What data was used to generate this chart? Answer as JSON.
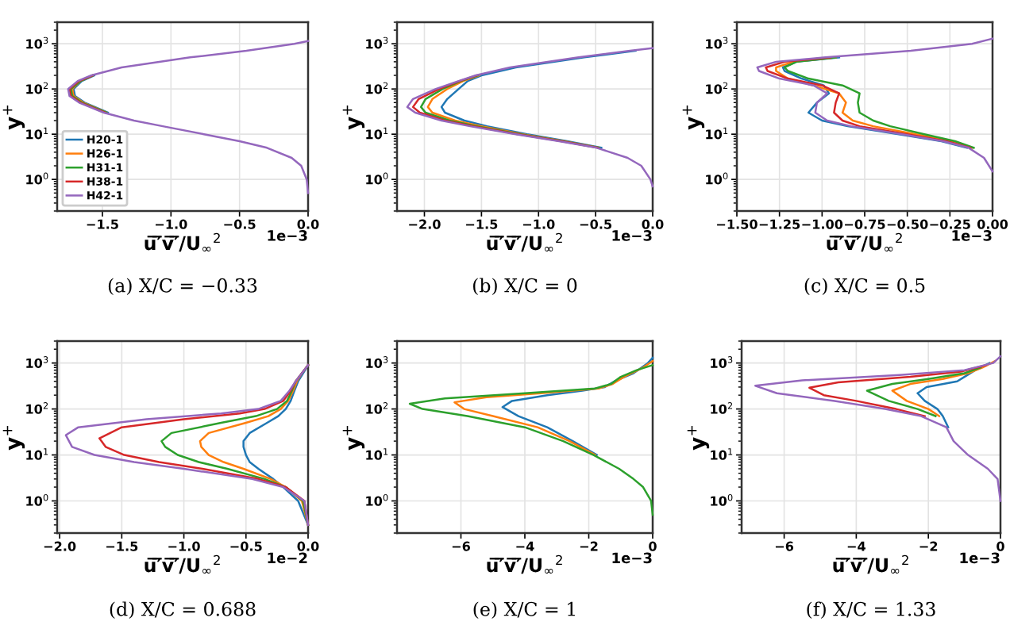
{
  "chart_data": [
    {
      "type": "line",
      "title": "(a) X/C = −0.33",
      "xlabel": "u̅′̅v̅′̅/U$_{∞}$$^{2}$",
      "ylabel": "y$^{+}$",
      "annotations": [
        "1e−3"
      ],
      "log": "y",
      "grid": true,
      "legend": "bottom left",
      "xlim": [
        -1.83,
        0
      ],
      "xticks": [
        {
          "value": -1.5,
          "label": "−1.5"
        },
        {
          "value": -1.0,
          "label": "−1.0"
        },
        {
          "value": -0.5,
          "label": "−0.5"
        },
        {
          "value": 0,
          "label": "0.0"
        }
      ],
      "ylim": [
        0.2,
        3000
      ],
      "yticks": [
        {
          "value": 1,
          "label": "10$^{0}$"
        },
        {
          "value": 10,
          "label": "10$^{1}$"
        },
        {
          "value": 100,
          "label": "10$^{2}$"
        },
        {
          "value": 1000,
          "label": "10$^{3}$"
        }
      ],
      "series": [
        {
          "name": "H20-1",
          "color": "#1f77b4",
          "x": [
            -1.46,
            -1.63,
            -1.7,
            -1.71,
            -1.65,
            -1.56
          ],
          "values": [
            30,
            50,
            70,
            100,
            150,
            200
          ]
        },
        {
          "name": "H26-1",
          "color": "#ff7f0e",
          "x": [
            -1.47,
            -1.64,
            -1.71,
            -1.72,
            -1.66,
            -1.57
          ],
          "values": [
            30,
            50,
            70,
            100,
            150,
            200
          ]
        },
        {
          "name": "H31-1",
          "color": "#2ca02c",
          "x": [
            -1.47,
            -1.65,
            -1.72,
            -1.73,
            -1.66,
            -1.57
          ],
          "values": [
            30,
            50,
            70,
            100,
            150,
            200
          ]
        },
        {
          "name": "H38-1",
          "color": "#d62728",
          "x": [
            -1.48,
            -1.66,
            -1.73,
            -1.74,
            -1.67,
            -1.57
          ],
          "values": [
            30,
            50,
            70,
            100,
            150,
            200
          ]
        },
        {
          "name": "H42-1",
          "color": "#9467bd",
          "x": [
            0,
            -0.01,
            -0.05,
            -0.12,
            -0.3,
            -0.5,
            -0.76,
            -1.06,
            -1.27,
            -1.49,
            -1.67,
            -1.74,
            -1.75,
            -1.68,
            -1.58,
            -1.36,
            -0.86,
            -0.45,
            -0.1,
            0
          ],
          "values": [
            0.5,
            1,
            2,
            3,
            5,
            7,
            10,
            15,
            20,
            30,
            50,
            70,
            100,
            150,
            200,
            300,
            500,
            700,
            1000,
            1150
          ]
        }
      ]
    },
    {
      "type": "line",
      "title": "(b) X/C = 0",
      "xlabel": "u̅′̅v̅′̅/U$_{∞}$$^{2}$",
      "ylabel": "y$^{+}$",
      "annotations": [
        "1e−3"
      ],
      "log": "y",
      "grid": true,
      "xlim": [
        -2.24,
        0
      ],
      "xticks": [
        {
          "value": -2.0,
          "label": "−2.0"
        },
        {
          "value": -1.5,
          "label": "−1.5"
        },
        {
          "value": -1.0,
          "label": "−1.0"
        },
        {
          "value": -0.5,
          "label": "−0.5"
        },
        {
          "value": 0,
          "label": "0.0"
        }
      ],
      "ylim": [
        0.2,
        3000
      ],
      "yticks": [
        {
          "value": 1,
          "label": "10$^{0}$"
        },
        {
          "value": 10,
          "label": "10$^{1}$"
        },
        {
          "value": 100,
          "label": "10$^{2}$"
        },
        {
          "value": 1000,
          "label": "10$^{3}$"
        }
      ],
      "series": [
        {
          "color": "#1f77b4",
          "x": [
            -0.45,
            -0.75,
            -1.1,
            -1.45,
            -1.65,
            -1.82,
            -1.85,
            -1.8,
            -1.7,
            -1.62,
            -1.5,
            -1.2,
            -0.6,
            -0.15
          ],
          "values": [
            5,
            7,
            10,
            15,
            20,
            30,
            40,
            60,
            100,
            150,
            200,
            300,
            500,
            700
          ]
        },
        {
          "color": "#ff7f0e",
          "x": [
            -0.47,
            -0.78,
            -1.14,
            -1.5,
            -1.73,
            -1.93,
            -1.97,
            -1.93,
            -1.8,
            -1.66,
            -1.52
          ],
          "values": [
            5,
            7,
            10,
            15,
            20,
            30,
            40,
            60,
            100,
            150,
            200
          ]
        },
        {
          "color": "#2ca02c",
          "x": [
            -0.47,
            -0.79,
            -1.16,
            -1.54,
            -1.78,
            -1.99,
            -2.03,
            -1.99,
            -1.84,
            -1.68,
            -1.53
          ],
          "values": [
            5,
            7,
            10,
            15,
            20,
            30,
            40,
            60,
            100,
            150,
            200
          ]
        },
        {
          "color": "#d62728",
          "x": [
            -0.48,
            -0.8,
            -1.18,
            -1.57,
            -1.82,
            -2.04,
            -2.1,
            -2.05,
            -1.87,
            -1.69,
            -1.54
          ],
          "values": [
            5,
            7,
            10,
            15,
            20,
            30,
            40,
            60,
            100,
            150,
            200
          ]
        },
        {
          "color": "#9467bd",
          "x": [
            0,
            -0.02,
            -0.1,
            -0.22,
            -0.49,
            -0.82,
            -1.2,
            -1.6,
            -1.85,
            -2.08,
            -2.15,
            -2.1,
            -1.9,
            -1.7,
            -1.55,
            -1.25,
            -0.65,
            -0.2,
            0
          ],
          "values": [
            0.7,
            1,
            2,
            3,
            5,
            7,
            10,
            15,
            20,
            30,
            40,
            60,
            100,
            150,
            200,
            300,
            500,
            700,
            800
          ]
        }
      ]
    },
    {
      "type": "line",
      "title": "(c) X/C = 0.5",
      "xlabel": "u̅′̅v̅′̅/U$_{∞}$$^{2}$",
      "ylabel": "y$^{+}$",
      "annotations": [
        "1e−3"
      ],
      "log": "y",
      "grid": true,
      "xlim": [
        -1.5,
        0
      ],
      "xticks": [
        {
          "value": -1.5,
          "label": "−1.50"
        },
        {
          "value": -1.25,
          "label": "−1.25"
        },
        {
          "value": -1.0,
          "label": "−1.00"
        },
        {
          "value": -0.75,
          "label": "−0.75"
        },
        {
          "value": -0.5,
          "label": "−0.50"
        },
        {
          "value": -0.25,
          "label": "−0.25"
        },
        {
          "value": 0,
          "label": "0.00"
        }
      ],
      "ylim": [
        0.2,
        3000
      ],
      "yticks": [
        {
          "value": 1,
          "label": "10$^{0}$"
        },
        {
          "value": 10,
          "label": "10$^{1}$"
        },
        {
          "value": 100,
          "label": "10$^{2}$"
        },
        {
          "value": 1000,
          "label": "10$^{3}$"
        }
      ],
      "series": [
        {
          "color": "#1f77b4",
          "x": [
            -0.15,
            -0.3,
            -0.55,
            -0.85,
            -1.0,
            -1.08,
            -1.03,
            -0.96,
            -0.99,
            -1.12,
            -1.22,
            -1.23,
            -1.15,
            -0.9
          ],
          "values": [
            5,
            7,
            10,
            15,
            20,
            30,
            50,
            80,
            120,
            170,
            250,
            300,
            400,
            500
          ]
        },
        {
          "color": "#ff7f0e",
          "x": [
            -0.12,
            -0.25,
            -0.45,
            -0.7,
            -0.82,
            -0.88,
            -0.86,
            -0.9,
            -1.05,
            -1.2,
            -1.27,
            -1.27,
            -1.17,
            -0.92
          ],
          "values": [
            5,
            7,
            10,
            15,
            20,
            30,
            50,
            80,
            120,
            170,
            250,
            300,
            400,
            500
          ]
        },
        {
          "color": "#2ca02c",
          "x": [
            -0.11,
            -0.22,
            -0.4,
            -0.6,
            -0.7,
            -0.78,
            -0.79,
            -0.78,
            -0.88,
            -1.08,
            -1.2,
            -1.22,
            -1.15,
            -0.92
          ],
          "values": [
            5,
            7,
            10,
            15,
            20,
            30,
            50,
            80,
            120,
            170,
            250,
            300,
            400,
            500
          ]
        },
        {
          "color": "#d62728",
          "x": [
            -0.13,
            -0.27,
            -0.5,
            -0.78,
            -0.88,
            -0.93,
            -0.92,
            -0.9,
            -1.0,
            -1.2,
            -1.32,
            -1.33,
            -1.22,
            -0.95
          ],
          "values": [
            5,
            7,
            10,
            15,
            20,
            30,
            50,
            80,
            120,
            170,
            250,
            300,
            400,
            500
          ]
        },
        {
          "color": "#9467bd",
          "x": [
            0,
            -0.05,
            -0.14,
            -0.29,
            -0.53,
            -0.83,
            -0.97,
            -1.04,
            -1.03,
            -0.97,
            -1.05,
            -1.25,
            -1.37,
            -1.38,
            -1.27,
            -0.98,
            -0.48,
            -0.12,
            0
          ],
          "values": [
            1.5,
            3,
            5,
            7,
            10,
            15,
            20,
            30,
            50,
            80,
            120,
            170,
            250,
            300,
            400,
            500,
            700,
            1000,
            1300
          ]
        }
      ]
    },
    {
      "type": "line",
      "title": "(d) X/C = 0.688",
      "xlabel": "u̅′̅v̅′̅/U$_{∞}$$^{2}$",
      "ylabel": "y$^{+}$",
      "annotations": [
        "1e−2"
      ],
      "log": "y",
      "grid": true,
      "xlim": [
        -2.02,
        0
      ],
      "xticks": [
        {
          "value": -2.0,
          "label": "−2.0"
        },
        {
          "value": -1.5,
          "label": "−1.5"
        },
        {
          "value": -1.0,
          "label": "−1.0"
        },
        {
          "value": -0.5,
          "label": "−0.5"
        },
        {
          "value": 0,
          "label": "0.0"
        }
      ],
      "ylim": [
        0.2,
        3000
      ],
      "yticks": [
        {
          "value": 1,
          "label": "10$^{0}$"
        },
        {
          "value": 10,
          "label": "10$^{1}$"
        },
        {
          "value": 100,
          "label": "10$^{2}$"
        },
        {
          "value": 1000,
          "label": "10$^{3}$"
        }
      ],
      "series": [
        {
          "color": "#1f77b4",
          "x": [
            0,
            -0.08,
            -0.2,
            -0.28,
            -0.4,
            -0.47,
            -0.5,
            -0.52,
            -0.52,
            -0.47,
            -0.33,
            -0.24,
            -0.18,
            -0.14,
            -0.11,
            -0.08,
            -0.04,
            0
          ],
          "values": [
            0.3,
            1,
            2,
            3,
            5,
            7,
            10,
            15,
            20,
            30,
            50,
            70,
            100,
            150,
            250,
            400,
            600,
            900
          ]
        },
        {
          "color": "#ff7f0e",
          "x": [
            0,
            -0.05,
            -0.18,
            -0.3,
            -0.52,
            -0.68,
            -0.8,
            -0.86,
            -0.87,
            -0.8,
            -0.5,
            -0.32,
            -0.22,
            -0.16,
            -0.12,
            -0.09,
            -0.05,
            0
          ],
          "values": [
            0.3,
            1,
            2,
            3,
            5,
            7,
            10,
            15,
            20,
            30,
            50,
            70,
            100,
            150,
            250,
            400,
            600,
            900
          ]
        },
        {
          "color": "#2ca02c",
          "x": [
            0,
            -0.04,
            -0.18,
            -0.35,
            -0.65,
            -0.88,
            -1.05,
            -1.15,
            -1.18,
            -1.1,
            -0.7,
            -0.42,
            -0.25,
            -0.17,
            -0.13,
            -0.1,
            -0.05,
            0
          ],
          "values": [
            0.3,
            1,
            2,
            3,
            5,
            7,
            10,
            15,
            20,
            30,
            50,
            70,
            100,
            150,
            250,
            400,
            600,
            900
          ]
        },
        {
          "color": "#d62728",
          "x": [
            0,
            -0.03,
            -0.18,
            -0.4,
            -0.85,
            -1.2,
            -1.48,
            -1.63,
            -1.68,
            -1.5,
            -1.0,
            -0.55,
            -0.35,
            -0.2,
            -0.14,
            -0.1,
            -0.05,
            0
          ],
          "values": [
            0.3,
            1,
            2,
            3,
            5,
            7,
            10,
            15,
            23,
            40,
            60,
            80,
            100,
            150,
            250,
            400,
            600,
            900
          ]
        },
        {
          "color": "#9467bd",
          "x": [
            0,
            -0.03,
            -0.2,
            -0.45,
            -1.0,
            -1.4,
            -1.72,
            -1.9,
            -1.95,
            -1.85,
            -1.3,
            -0.7,
            -0.4,
            -0.22,
            -0.15,
            -0.1,
            -0.05,
            0
          ],
          "values": [
            0.3,
            1,
            2,
            3,
            5,
            7,
            10,
            15,
            27,
            40,
            60,
            80,
            100,
            150,
            250,
            400,
            600,
            900
          ]
        }
      ]
    },
    {
      "type": "line",
      "title": "(e) X/C = 1",
      "xlabel": "u̅′̅v̅′̅/U$_{∞}$$^{2}$",
      "ylabel": "y$^{+}$",
      "annotations": [
        "1e−3"
      ],
      "log": "y",
      "grid": true,
      "xlim": [
        -8.0,
        0
      ],
      "xticks": [
        {
          "value": -6,
          "label": "−6"
        },
        {
          "value": -4,
          "label": "−4"
        },
        {
          "value": -2,
          "label": "−2"
        },
        0
      ],
      "ylim": [
        0.2,
        3000
      ],
      "yticks": [
        {
          "value": 1,
          "label": "10$^{0}$"
        },
        {
          "value": 10,
          "label": "10$^{1}$"
        },
        {
          "value": 100,
          "label": "10$^{2}$"
        },
        {
          "value": 1000,
          "label": "10$^{3}$"
        }
      ],
      "series": [
        {
          "color": "#1f77b4",
          "x": [
            -1.75,
            -2.5,
            -3.3,
            -4.2,
            -4.7,
            -4.4,
            -3.3,
            -2.2,
            -1.5,
            -1.2,
            -0.6,
            -0.15,
            0
          ],
          "values": [
            10,
            20,
            40,
            70,
            110,
            150,
            200,
            250,
            300,
            400,
            600,
            1000,
            1300
          ]
        },
        {
          "color": "#ff7f0e",
          "x": [
            -1.8,
            -2.6,
            -3.6,
            -5.0,
            -5.9,
            -6.2,
            -5.2,
            -3.5,
            -1.7,
            -1.25,
            -0.9,
            -0.3,
            0
          ],
          "values": [
            10,
            20,
            40,
            70,
            100,
            140,
            180,
            220,
            280,
            350,
            500,
            800,
            1100
          ]
        },
        {
          "color": "#2ca02c",
          "x": [
            0,
            -0.05,
            -0.3,
            -0.6,
            -1.05,
            -1.85,
            -2.8,
            -4.0,
            -5.8,
            -7.2,
            -7.6,
            -6.5,
            -4.0,
            -1.8,
            -1.3,
            -1.0,
            -0.5,
            0
          ],
          "values": [
            0.5,
            1,
            2,
            3,
            5,
            10,
            20,
            40,
            70,
            100,
            130,
            170,
            220,
            280,
            350,
            500,
            700,
            900
          ]
        }
      ]
    },
    {
      "type": "line",
      "title": "(f) X/C = 1.33",
      "xlabel": "u̅′̅v̅′̅/U$_{∞}$$^{2}$",
      "ylabel": "y$^{+}$",
      "annotations": [
        "1e−3"
      ],
      "log": "y",
      "grid": true,
      "xlim": [
        -7.18,
        0
      ],
      "xticks": [
        {
          "value": -6,
          "label": "−6"
        },
        {
          "value": -4,
          "label": "−4"
        },
        {
          "value": -2,
          "label": "−2"
        },
        0
      ],
      "ylim": [
        0.2,
        3000
      ],
      "yticks": [
        {
          "value": 1,
          "label": "10$^{0}$"
        },
        {
          "value": 10,
          "label": "10$^{1}$"
        },
        {
          "value": 100,
          "label": "10$^{2}$"
        },
        {
          "value": 1000,
          "label": "10$^{3}$"
        }
      ],
      "series": [
        {
          "color": "#1f77b4",
          "x": [
            -1.45,
            -1.6,
            -1.75,
            -2.1,
            -2.3,
            -2.05,
            -1.2,
            -1.0,
            -0.7,
            -0.3
          ],
          "values": [
            40,
            70,
            100,
            150,
            220,
            300,
            400,
            500,
            700,
            1000
          ]
        },
        {
          "color": "#ff7f0e",
          "x": [
            -1.7,
            -2.0,
            -2.6,
            -3.0,
            -2.5,
            -1.6,
            -0.9,
            -0.5,
            -0.15
          ],
          "values": [
            70,
            100,
            150,
            250,
            350,
            450,
            600,
            800,
            1100
          ]
        },
        {
          "color": "#2ca02c",
          "x": [
            -1.8,
            -2.3,
            -3.1,
            -3.7,
            -3.0,
            -2.0,
            -1.0,
            -0.55
          ],
          "values": [
            70,
            100,
            150,
            250,
            350,
            450,
            600,
            800
          ]
        },
        {
          "color": "#d62728",
          "x": [
            -2.1,
            -2.9,
            -4.0,
            -4.9,
            -5.3,
            -4.5,
            -2.5,
            -1.1,
            -0.4
          ],
          "values": [
            70,
            100,
            150,
            200,
            290,
            380,
            500,
            650,
            900
          ]
        },
        {
          "color": "#9467bd",
          "x": [
            0,
            -0.08,
            -0.35,
            -0.9,
            -1.3,
            -1.5,
            -2.2,
            -3.2,
            -4.6,
            -6.2,
            -6.8,
            -5.5,
            -2.8,
            -1.0,
            -0.2,
            0
          ],
          "values": [
            1,
            3,
            5,
            10,
            20,
            40,
            70,
            100,
            150,
            220,
            320,
            420,
            550,
            700,
            1000,
            1400
          ]
        }
      ]
    }
  ]
}
